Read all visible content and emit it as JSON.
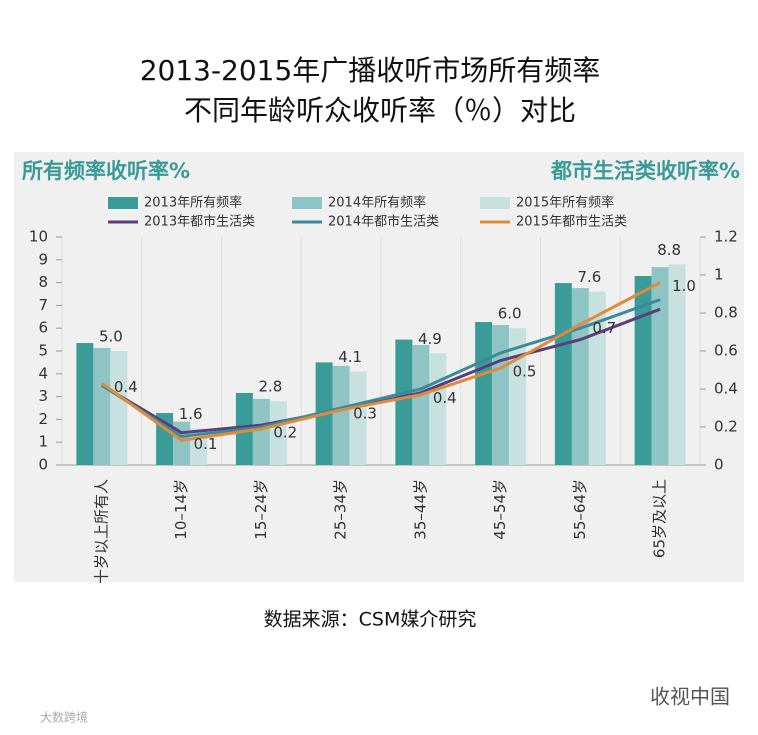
{
  "chart_data": {
    "type": "bar",
    "title": "2013-2015年广播收听市场所有频率",
    "subtitle": "不同年龄听众收听率（％）对比",
    "y_label": "所有频率收听率%",
    "y2_label": "都市生活类收听率%",
    "categories": [
      "十岁以上所有人",
      "10–14岁",
      "15–24岁",
      "25–34岁",
      "35–44岁",
      "45–54岁",
      "55–64岁",
      "65岁及以上"
    ],
    "series": [
      {
        "name": "2013年所有频率",
        "type": "bar",
        "color": "#3b9b98",
        "values": [
          5.35,
          2.28,
          3.16,
          4.5,
          5.5,
          6.27,
          7.98,
          8.29
        ]
      },
      {
        "name": "2014年所有频率",
        "type": "bar",
        "color": "#8ec5c4",
        "values": [
          5.13,
          1.9,
          2.9,
          4.35,
          5.26,
          6.14,
          7.76,
          8.68
        ]
      },
      {
        "name": "2015年所有频率",
        "type": "bar",
        "color": "#c7e1df",
        "values": [
          5,
          1.6,
          2.8,
          4.1,
          4.9,
          6,
          7.6,
          8.8
        ],
        "value_labels": [
          "5.0",
          "1.6",
          "2.8",
          "4.1",
          "4.9",
          "6.0",
          "7.6",
          "8.8"
        ]
      },
      {
        "name": "2013年都市生活类",
        "type": "line",
        "axis": "y2",
        "color": "#5c3d7c",
        "values": [
          0.42,
          0.17,
          0.21,
          0.29,
          0.38,
          0.55,
          0.66,
          0.82
        ]
      },
      {
        "name": "2014年都市生活类",
        "type": "line",
        "axis": "y2",
        "color": "#3a8a9b",
        "values": [
          0.42,
          0.15,
          0.2,
          0.3,
          0.4,
          0.59,
          0.72,
          0.87
        ]
      },
      {
        "name": "2015年都市生活类",
        "type": "line",
        "axis": "y2",
        "color": "#e08a3c",
        "values": [
          0.43,
          0.13,
          0.19,
          0.29,
          0.37,
          0.51,
          0.74,
          0.96
        ],
        "value_labels": [
          "0.4",
          "0.1",
          "0.2",
          "0.3",
          "0.4",
          "0.5",
          "0.7",
          "1.0"
        ]
      }
    ],
    "ylim": [
      0,
      10
    ],
    "yticks": [
      0,
      1,
      2,
      3,
      4,
      5,
      6,
      7,
      8,
      9,
      10
    ],
    "y2lim": [
      0,
      1.2
    ],
    "y2ticks": [
      0,
      0.2,
      0.4,
      0.6,
      0.8,
      1,
      1.2
    ],
    "source": "数据来源：CSM媒介研究"
  },
  "watermarks": [
    "收视中国",
    "大数跨境"
  ]
}
